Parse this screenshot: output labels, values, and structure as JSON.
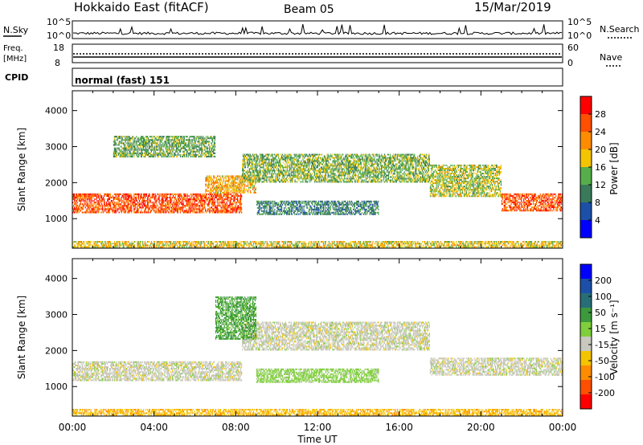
{
  "header": {
    "station": "Hokkaido East (fitACF)",
    "beam": "Beam 05",
    "date": "15/Mar/2019"
  },
  "nsky": {
    "label": "N.Sky",
    "tick_top": "10^5",
    "tick_bottom": "10^0",
    "right_label": "N.Search"
  },
  "freq": {
    "label_line1": "Freq.",
    "label_line2": "[MHz]",
    "tick_top": "18",
    "tick_bottom": "8",
    "right_tick_top": "60",
    "right_tick_bottom": "0",
    "right_label": "Nave"
  },
  "cpid": {
    "label": "CPID",
    "mode": "normal (fast) 151"
  },
  "colors": {
    "power": [
      "#0000ff",
      "#1c50a8",
      "#3a7a5a",
      "#56ae4a",
      "#f5c400",
      "#ff8c00",
      "#ff4f00",
      "#ff0000"
    ],
    "velocity": [
      "#ff0000",
      "#ff4f00",
      "#ff8c00",
      "#f5c400",
      "#c8c8be",
      "#7fce3c",
      "#3c9a3c",
      "#286e78",
      "#1c50a8",
      "#0000ff"
    ]
  },
  "chart_data": [
    {
      "type": "heatmap",
      "quantity": "Power",
      "xlabel": "Time UT",
      "ylabel": "Slant Range [km]",
      "x_ticks": [
        "00:00",
        "04:00",
        "08:00",
        "12:00",
        "16:00",
        "20:00",
        "00:00"
      ],
      "x_range_hours": [
        0,
        24
      ],
      "y_ticks": [
        1000,
        2000,
        3000,
        4000
      ],
      "ylim": [
        180,
        4550
      ],
      "colorbar": {
        "label": "Power [dB]",
        "ticks": [
          4,
          8,
          12,
          16,
          20,
          24,
          28
        ],
        "range": [
          0,
          32
        ]
      },
      "echo_regions": [
        {
          "t_start": 0.0,
          "t_end": 8.3,
          "range_low": 1150,
          "range_high": 1700,
          "value": 26
        },
        {
          "t_start": 6.5,
          "t_end": 9.0,
          "range_low": 1700,
          "range_high": 2200,
          "value": 20
        },
        {
          "t_start": 8.3,
          "t_end": 17.5,
          "range_low": 2000,
          "range_high": 2800,
          "value": 14
        },
        {
          "t_start": 9.0,
          "t_end": 15.0,
          "range_low": 1100,
          "range_high": 1500,
          "value": 10
        },
        {
          "t_start": 17.5,
          "t_end": 21.0,
          "range_low": 1600,
          "range_high": 2500,
          "value": 16
        },
        {
          "t_start": 21.0,
          "t_end": 24.0,
          "range_low": 1200,
          "range_high": 1700,
          "value": 26
        },
        {
          "t_start": 2.0,
          "t_end": 7.0,
          "range_low": 2700,
          "range_high": 3300,
          "value": 13
        },
        {
          "t_start": 0.0,
          "t_end": 24.0,
          "range_low": 190,
          "range_high": 380,
          "value": 18
        }
      ]
    },
    {
      "type": "heatmap",
      "quantity": "Velocity",
      "xlabel": "Time UT",
      "ylabel": "Slant Range [km]",
      "x_ticks": [
        "00:00",
        "04:00",
        "08:00",
        "12:00",
        "16:00",
        "20:00",
        "00:00"
      ],
      "x_range_hours": [
        0,
        24
      ],
      "y_ticks": [
        1000,
        2000,
        3000,
        4000
      ],
      "ylim": [
        180,
        4550
      ],
      "colorbar": {
        "label": "Velocity [m s⁻¹]",
        "ticks": [
          200,
          100,
          50,
          15,
          -15,
          -50,
          -100,
          -200
        ]
      },
      "echo_regions": [
        {
          "t_start": 0.0,
          "t_end": 8.3,
          "range_low": 1150,
          "range_high": 1700,
          "value": 0
        },
        {
          "t_start": 8.3,
          "t_end": 17.5,
          "range_low": 2000,
          "range_high": 2800,
          "value": 0
        },
        {
          "t_start": 9.0,
          "t_end": 15.0,
          "range_low": 1100,
          "range_high": 1500,
          "value": 30
        },
        {
          "t_start": 7.0,
          "t_end": 9.0,
          "range_low": 2300,
          "range_high": 3500,
          "value": 60
        },
        {
          "t_start": 17.5,
          "t_end": 24.0,
          "range_low": 1300,
          "range_high": 1800,
          "value": 0
        },
        {
          "t_start": 0.0,
          "t_end": 24.0,
          "range_low": 190,
          "range_high": 380,
          "value": -40
        }
      ]
    }
  ]
}
